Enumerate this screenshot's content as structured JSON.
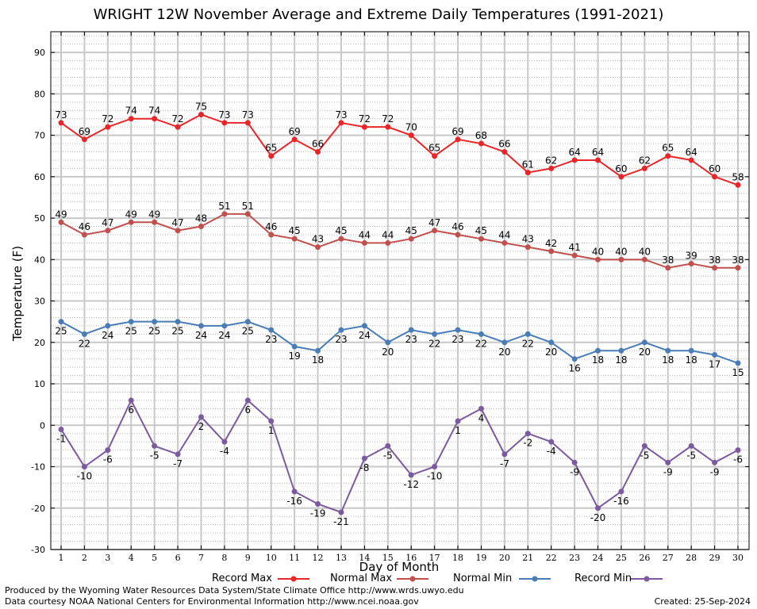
{
  "chart_data": {
    "type": "line",
    "title": "WRIGHT 12W November Average and Extreme Daily Temperatures (1991-2021)",
    "xlabel": "Day of Month",
    "ylabel": "Temperature (F)",
    "xlim": [
      1,
      30
    ],
    "ylim": [
      -30,
      95
    ],
    "yticks": [
      -30,
      -20,
      -10,
      0,
      10,
      20,
      30,
      40,
      50,
      60,
      70,
      80,
      90
    ],
    "grid": true,
    "legend": "bottom",
    "x": [
      1,
      2,
      3,
      4,
      5,
      6,
      7,
      8,
      9,
      10,
      11,
      12,
      13,
      14,
      15,
      16,
      17,
      18,
      19,
      20,
      21,
      22,
      23,
      24,
      25,
      26,
      27,
      28,
      29,
      30
    ],
    "series": [
      {
        "name": "Record Max",
        "color": "#e8262a",
        "labels_above": true,
        "values": [
          73,
          69,
          72,
          74,
          74,
          72,
          75,
          73,
          73,
          65,
          69,
          66,
          73,
          72,
          72,
          70,
          65,
          69,
          68,
          66,
          61,
          62,
          64,
          64,
          60,
          62,
          65,
          64,
          60,
          58
        ]
      },
      {
        "name": "Normal Max",
        "color": "#c0504d",
        "labels_above": true,
        "values": [
          49,
          46,
          47,
          49,
          49,
          47,
          48,
          51,
          51,
          46,
          45,
          43,
          45,
          44,
          44,
          45,
          47,
          46,
          45,
          44,
          43,
          42,
          41,
          40,
          40,
          40,
          38,
          39,
          38,
          38
        ]
      },
      {
        "name": "Normal Min",
        "color": "#4a7db5",
        "labels_above": false,
        "values": [
          25,
          22,
          24,
          25,
          25,
          25,
          24,
          24,
          25,
          23,
          19,
          18,
          23,
          24,
          20,
          23,
          22,
          23,
          22,
          20,
          22,
          20,
          16,
          18,
          18,
          20,
          18,
          18,
          17,
          15
        ]
      },
      {
        "name": "Record Min",
        "color": "#7b5a9e",
        "labels_above": false,
        "values": [
          -1,
          -10,
          -6,
          6,
          -5,
          -7,
          2,
          -4,
          6,
          1,
          -16,
          -19,
          -21,
          -8,
          -5,
          -12,
          -10,
          1,
          4,
          -7,
          -2,
          -4,
          -9,
          -20,
          -16,
          -5,
          -9,
          -5,
          -9,
          -6
        ]
      }
    ]
  },
  "legend_labels": [
    "Record Max",
    "Normal Max",
    "Normal Min",
    "Record Min"
  ],
  "footer": {
    "line1": "Produced by the Wyoming Water Resources Data System/State Climate Office http://www.wrds.uwyo.edu",
    "line2": "Data courtesy NOAA National Centers for Environmental Information http://www.ncei.noaa.gov",
    "created": "Created: 25-Sep-2024"
  }
}
